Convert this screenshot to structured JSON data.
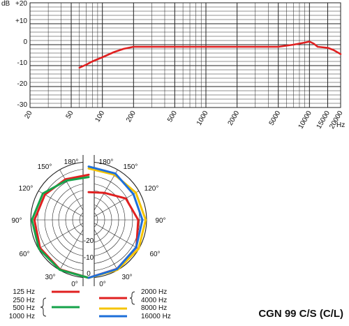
{
  "chart_data": [
    {
      "type": "line",
      "title": "",
      "ylabel": "dB",
      "xunit": "Hz",
      "xscale": "log",
      "grid": true,
      "xlim": [
        20,
        20000
      ],
      "ylim": [
        -30,
        20
      ],
      "y_ticks": [
        "+20",
        "+10",
        "0",
        "-10",
        "-20",
        "-30"
      ],
      "y_tick_values": [
        20,
        10,
        0,
        -10,
        -20,
        -30
      ],
      "x_ticks": [
        "20",
        "50",
        "100",
        "200",
        "500",
        "1000",
        "2000",
        "5000",
        "10000",
        "15000",
        "20000"
      ],
      "x_tick_values": [
        20,
        50,
        100,
        200,
        500,
        1000,
        2000,
        5000,
        10000,
        15000,
        20000
      ],
      "series": [
        {
          "color": "#e02020",
          "x": [
            60,
            70,
            80,
            100,
            130,
            160,
            200,
            300,
            500,
            1000,
            2000,
            5000,
            7000,
            9000,
            10000,
            11000,
            12000,
            15000,
            17000,
            20000
          ],
          "y": [
            -11,
            -9.5,
            -8,
            -6,
            -3.5,
            -2,
            -1,
            -1,
            -1,
            -1,
            -1,
            -1,
            0,
            1,
            1.5,
            0.5,
            -1,
            -1.5,
            -2.5,
            -4.5
          ]
        }
      ]
    },
    {
      "type": "polar",
      "angle_labels_left": [
        "180°",
        "150°",
        "120°",
        "90°",
        "60°",
        "30°",
        "0°"
      ],
      "angle_labels_right": [
        "180°",
        "150°",
        "120°",
        "90°",
        "60°",
        "30°",
        "0°"
      ],
      "radial_labels": [
        "-20",
        "-10",
        "0"
      ],
      "radial_range_db": [
        -25,
        0
      ],
      "left_series": [
        {
          "color": "#e02020",
          "angles": [
            0,
            30,
            60,
            90,
            120,
            150,
            180
          ],
          "db": [
            0,
            -0.3,
            -0.8,
            -1.6,
            -3.2,
            -4.8,
            -5.5
          ]
        },
        {
          "color": "#16a34a",
          "angles": [
            0,
            30,
            60,
            90,
            120,
            150,
            180
          ],
          "db": [
            0,
            -0.1,
            -0.2,
            -0.5,
            -2.2,
            -5.5,
            -6.5
          ]
        }
      ],
      "right_series": [
        {
          "color": "#e02020",
          "angles": [
            0,
            30,
            60,
            90,
            120,
            150,
            180
          ],
          "db": [
            0,
            -0.6,
            -1.2,
            -3.6,
            -6.5,
            -11.5,
            -13
          ]
        },
        {
          "color": "#f5c400",
          "angles": [
            0,
            30,
            60,
            90,
            120,
            150,
            180
          ],
          "db": [
            0,
            -0.1,
            -0.1,
            -0.4,
            -1.5,
            -2.5,
            -2.8
          ]
        },
        {
          "color": "#1e6fd9",
          "angles": [
            0,
            30,
            60,
            90,
            120,
            150,
            180
          ],
          "db": [
            0,
            -0.5,
            -1.3,
            -1.8,
            -2.7,
            -1.9,
            -2.0
          ]
        }
      ],
      "legend": {
        "left": [
          {
            "label": "125 Hz",
            "color": "#e02020"
          },
          {
            "label": "250 Hz",
            "color": "#16a34a"
          },
          {
            "label": "500 Hz",
            "color": "#16a34a"
          },
          {
            "label": "1000 Hz",
            "color": "#16a34a"
          }
        ],
        "right": [
          {
            "label": "2000 Hz",
            "color": "#e02020"
          },
          {
            "label": "4000 Hz",
            "color": "#e02020"
          },
          {
            "label": "8000 Hz",
            "color": "#f5c400"
          },
          {
            "label": "16000 Hz",
            "color": "#1e6fd9"
          }
        ]
      }
    }
  ],
  "model_label": "CGN 99 C/S (C/L)"
}
